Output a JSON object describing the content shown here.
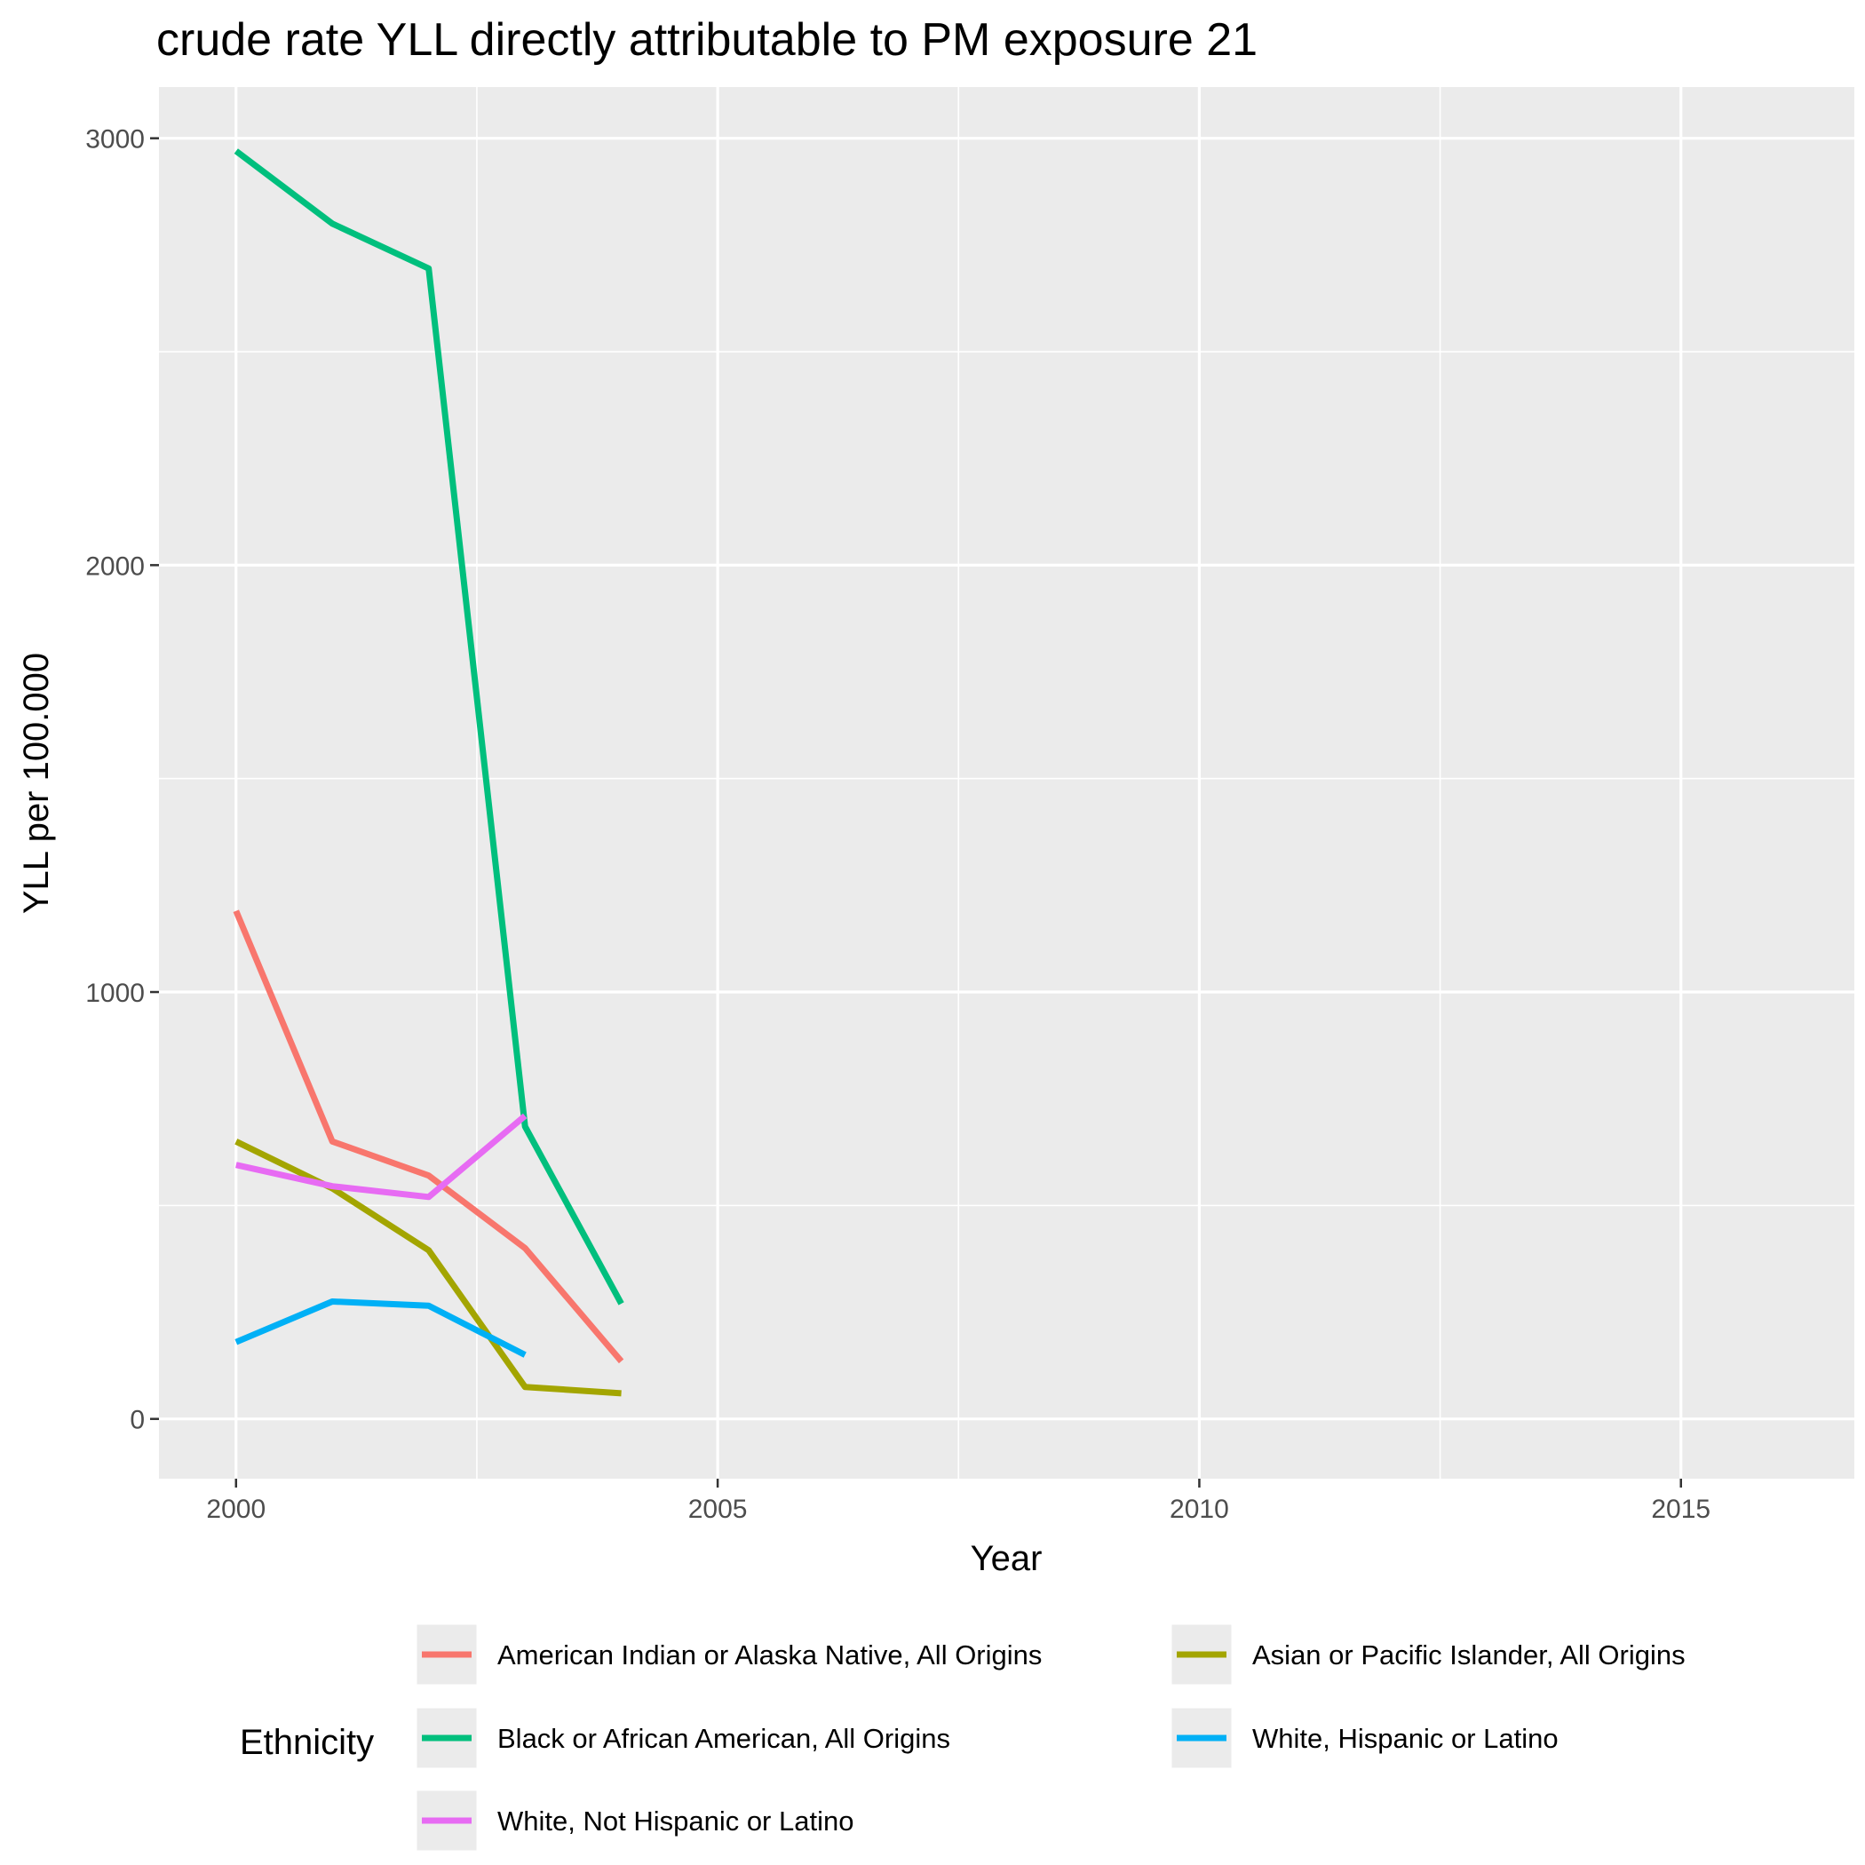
{
  "chart_data": {
    "type": "line",
    "title": "crude rate YLL directly attributable to PM exposure 21",
    "xlabel": "Year",
    "ylabel": "YLL per 100.000",
    "xlim": [
      1999.2,
      2016.8
    ],
    "ylim": [
      -140,
      3120
    ],
    "x_ticks": [
      2000,
      2005,
      2010,
      2015
    ],
    "x_tick_labels": [
      "2000",
      "2005",
      "2010",
      "2015"
    ],
    "y_ticks": [
      0,
      1000,
      2000,
      3000
    ],
    "y_tick_labels": [
      "0",
      "1000",
      "2000",
      "3000"
    ],
    "grid": true,
    "legend": {
      "title": "Ethnicity",
      "position": "bottom"
    },
    "series": [
      {
        "name": "American Indian or Alaska Native, All Origins",
        "color": "#F8766D",
        "x": [
          2000,
          2001,
          2002,
          2003,
          2004
        ],
        "y": [
          1190,
          650,
          570,
          400,
          135
        ]
      },
      {
        "name": "Asian or Pacific Islander, All Origins",
        "color": "#A3A500",
        "x": [
          2000,
          2001,
          2002,
          2003,
          2004
        ],
        "y": [
          650,
          540,
          395,
          75,
          60
        ]
      },
      {
        "name": "Black or African American, All Origins",
        "color": "#00BF7D",
        "x": [
          2000,
          2001,
          2002,
          2003,
          2004
        ],
        "y": [
          2970,
          2800,
          2695,
          685,
          270
        ]
      },
      {
        "name": "White, Hispanic or Latino",
        "color": "#00B0F6",
        "x": [
          2000,
          2001,
          2002,
          2003
        ],
        "y": [
          180,
          275,
          265,
          150
        ]
      },
      {
        "name": "White, Not Hispanic or Latino",
        "color": "#E76BF3",
        "x": [
          2000,
          2001,
          2002,
          2003
        ],
        "y": [
          595,
          545,
          520,
          710
        ]
      }
    ]
  }
}
